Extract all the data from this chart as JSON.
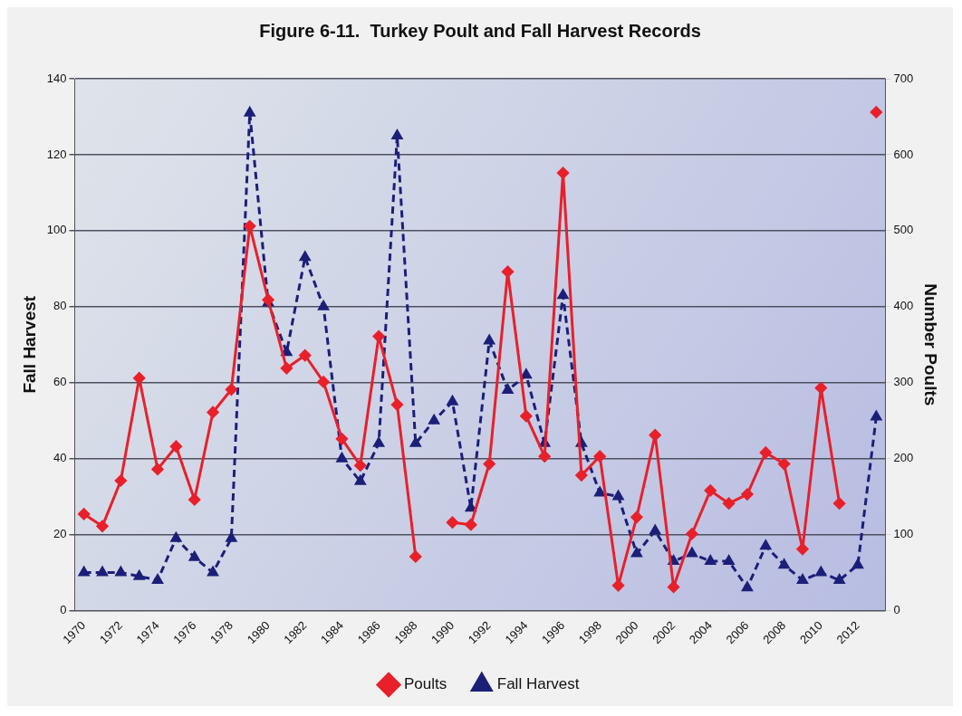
{
  "chart_data": {
    "type": "line",
    "title": "Figure 6-11.  Turkey Poult and Fall Harvest Records",
    "ylabel": "Fall Harvest",
    "y2label": "Number Poults",
    "categories": [
      "1970",
      null,
      "1972",
      null,
      "1974",
      null,
      "1976",
      null,
      "1978",
      null,
      "1980",
      null,
      "1982",
      null,
      "1984",
      null,
      "1986",
      null,
      "1988",
      null,
      "1990",
      null,
      "1992",
      null,
      "1994",
      null,
      "1996",
      null,
      "1998",
      null,
      "2000",
      null,
      "2002",
      null,
      "2004",
      null,
      "2006",
      null,
      "2008",
      null,
      "2010",
      null,
      "2012",
      null
    ],
    "series": [
      {
        "name": "Fall Harvest",
        "color": "#1c1f78",
        "marker": "triangle",
        "line_style": "dashed",
        "values": [
          10,
          10,
          10,
          9,
          8,
          19,
          14,
          10,
          19,
          131,
          81,
          68,
          93,
          80,
          40,
          34,
          44,
          125,
          44,
          50,
          55,
          27,
          71,
          58,
          62,
          44,
          83,
          44,
          31,
          30,
          15,
          21,
          13,
          15,
          13,
          13,
          6,
          17,
          12,
          8,
          10,
          8,
          12,
          51
        ]
      },
      {
        "name": "Poults",
        "color": "#e8202a",
        "marker": "diamond",
        "line_style": "solid",
        "axis": "y2",
        "values": [
          127,
          111,
          171,
          306,
          186,
          216,
          146,
          261,
          291,
          506,
          409,
          319,
          336,
          301,
          226,
          191,
          361,
          271,
          71,
          null,
          116,
          113,
          193,
          446,
          256,
          203,
          576,
          178,
          203,
          33,
          123,
          231,
          31,
          101,
          158,
          141,
          153,
          208,
          193,
          81,
          293,
          141,
          null,
          656
        ]
      }
    ],
    "ylim": [
      0,
      140
    ],
    "yticks": [
      0,
      20,
      40,
      60,
      80,
      100,
      120,
      140
    ],
    "y2lim": [
      0,
      700
    ],
    "y2ticks": [
      0,
      100,
      200,
      300,
      400,
      500,
      600,
      700
    ],
    "grid": "y",
    "legend": "bottom"
  }
}
